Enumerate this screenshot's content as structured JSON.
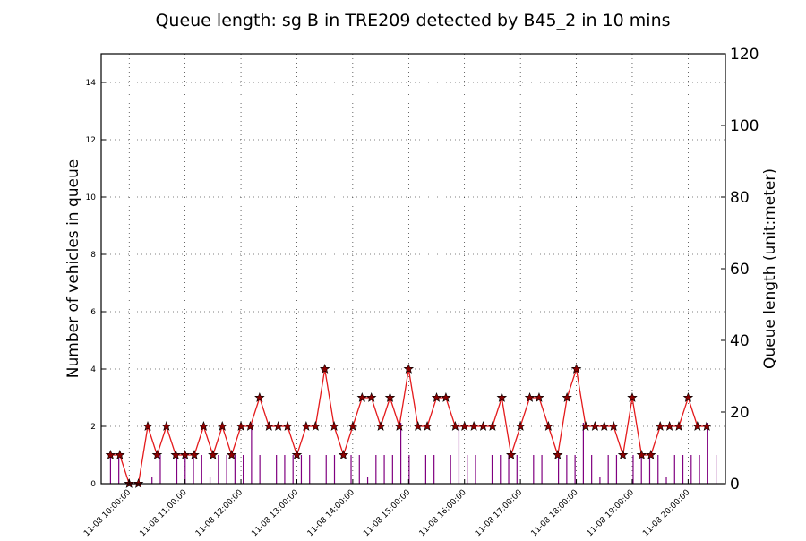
{
  "chart_data": {
    "type": "line",
    "title": "Queue length: sg B in TRE209 detected by B45_2 in 10 mins",
    "ylabel": "Number of vehicles in queue",
    "ylabel_right": "Queue length (unit:meter)",
    "ylim": [
      0,
      15
    ],
    "ylim_right": [
      0,
      120
    ],
    "yticks": [
      "0",
      "2",
      "4",
      "6",
      "8",
      "10",
      "12",
      "14"
    ],
    "yticks_right": [
      "0",
      "20",
      "40",
      "60",
      "80",
      "100",
      "120"
    ],
    "xlim_hours": [
      9.5,
      20.6667
    ],
    "xticks": [
      {
        "label": "11-08 10:00:00",
        "hour": 10
      },
      {
        "label": "11-08 11:00:00",
        "hour": 11
      },
      {
        "label": "11-08 12:00:00",
        "hour": 12
      },
      {
        "label": "11-08 13:00:00",
        "hour": 13
      },
      {
        "label": "11-08 14:00:00",
        "hour": 14
      },
      {
        "label": "11-08 15:00:00",
        "hour": 15
      },
      {
        "label": "11-08 16:00:00",
        "hour": 16
      },
      {
        "label": "11-08 17:00:00",
        "hour": 17
      },
      {
        "label": "11-08 18:00:00",
        "hour": 18
      },
      {
        "label": "11-08 19:00:00",
        "hour": 19
      },
      {
        "label": "11-08 20:00:00",
        "hour": 20
      }
    ],
    "grid": true,
    "series": [
      {
        "name": "",
        "color": "#e41a1c",
        "marker_color": "#8b0000",
        "marker": "star",
        "x_start_hour": 9.6667,
        "x_step_hours": 0.16667,
        "values": [
          1,
          1,
          0,
          0,
          2,
          1,
          2,
          1,
          1,
          1,
          2,
          1,
          2,
          1,
          2,
          2,
          3,
          2,
          2,
          2,
          1,
          2,
          2,
          4,
          2,
          1,
          2,
          3,
          3,
          2,
          3,
          2,
          4,
          2,
          2,
          3,
          3,
          2,
          2,
          2,
          2,
          2,
          3,
          1,
          2,
          3,
          3,
          2,
          1,
          3,
          4,
          2,
          2,
          2,
          2,
          1,
          3,
          1,
          1,
          2,
          2,
          2,
          3,
          2,
          2
        ]
      }
    ],
    "bars": {
      "color": "#800080",
      "values_right_axis": [
        8,
        8,
        0,
        0,
        0,
        2,
        8,
        0,
        8,
        8,
        8,
        8,
        2,
        8,
        8,
        8,
        8,
        17,
        8,
        0,
        8,
        8,
        8,
        8,
        8,
        0,
        8,
        8,
        0,
        8,
        8,
        2,
        8,
        8,
        8,
        17,
        8,
        0,
        8,
        8,
        0,
        8,
        17,
        8,
        8,
        0,
        8,
        8,
        8,
        8,
        0,
        8,
        8,
        0,
        8,
        8,
        8,
        17,
        8,
        2,
        8,
        8,
        0,
        8,
        8,
        8,
        8,
        2,
        8,
        8,
        8,
        8,
        17,
        8
      ]
    }
  }
}
